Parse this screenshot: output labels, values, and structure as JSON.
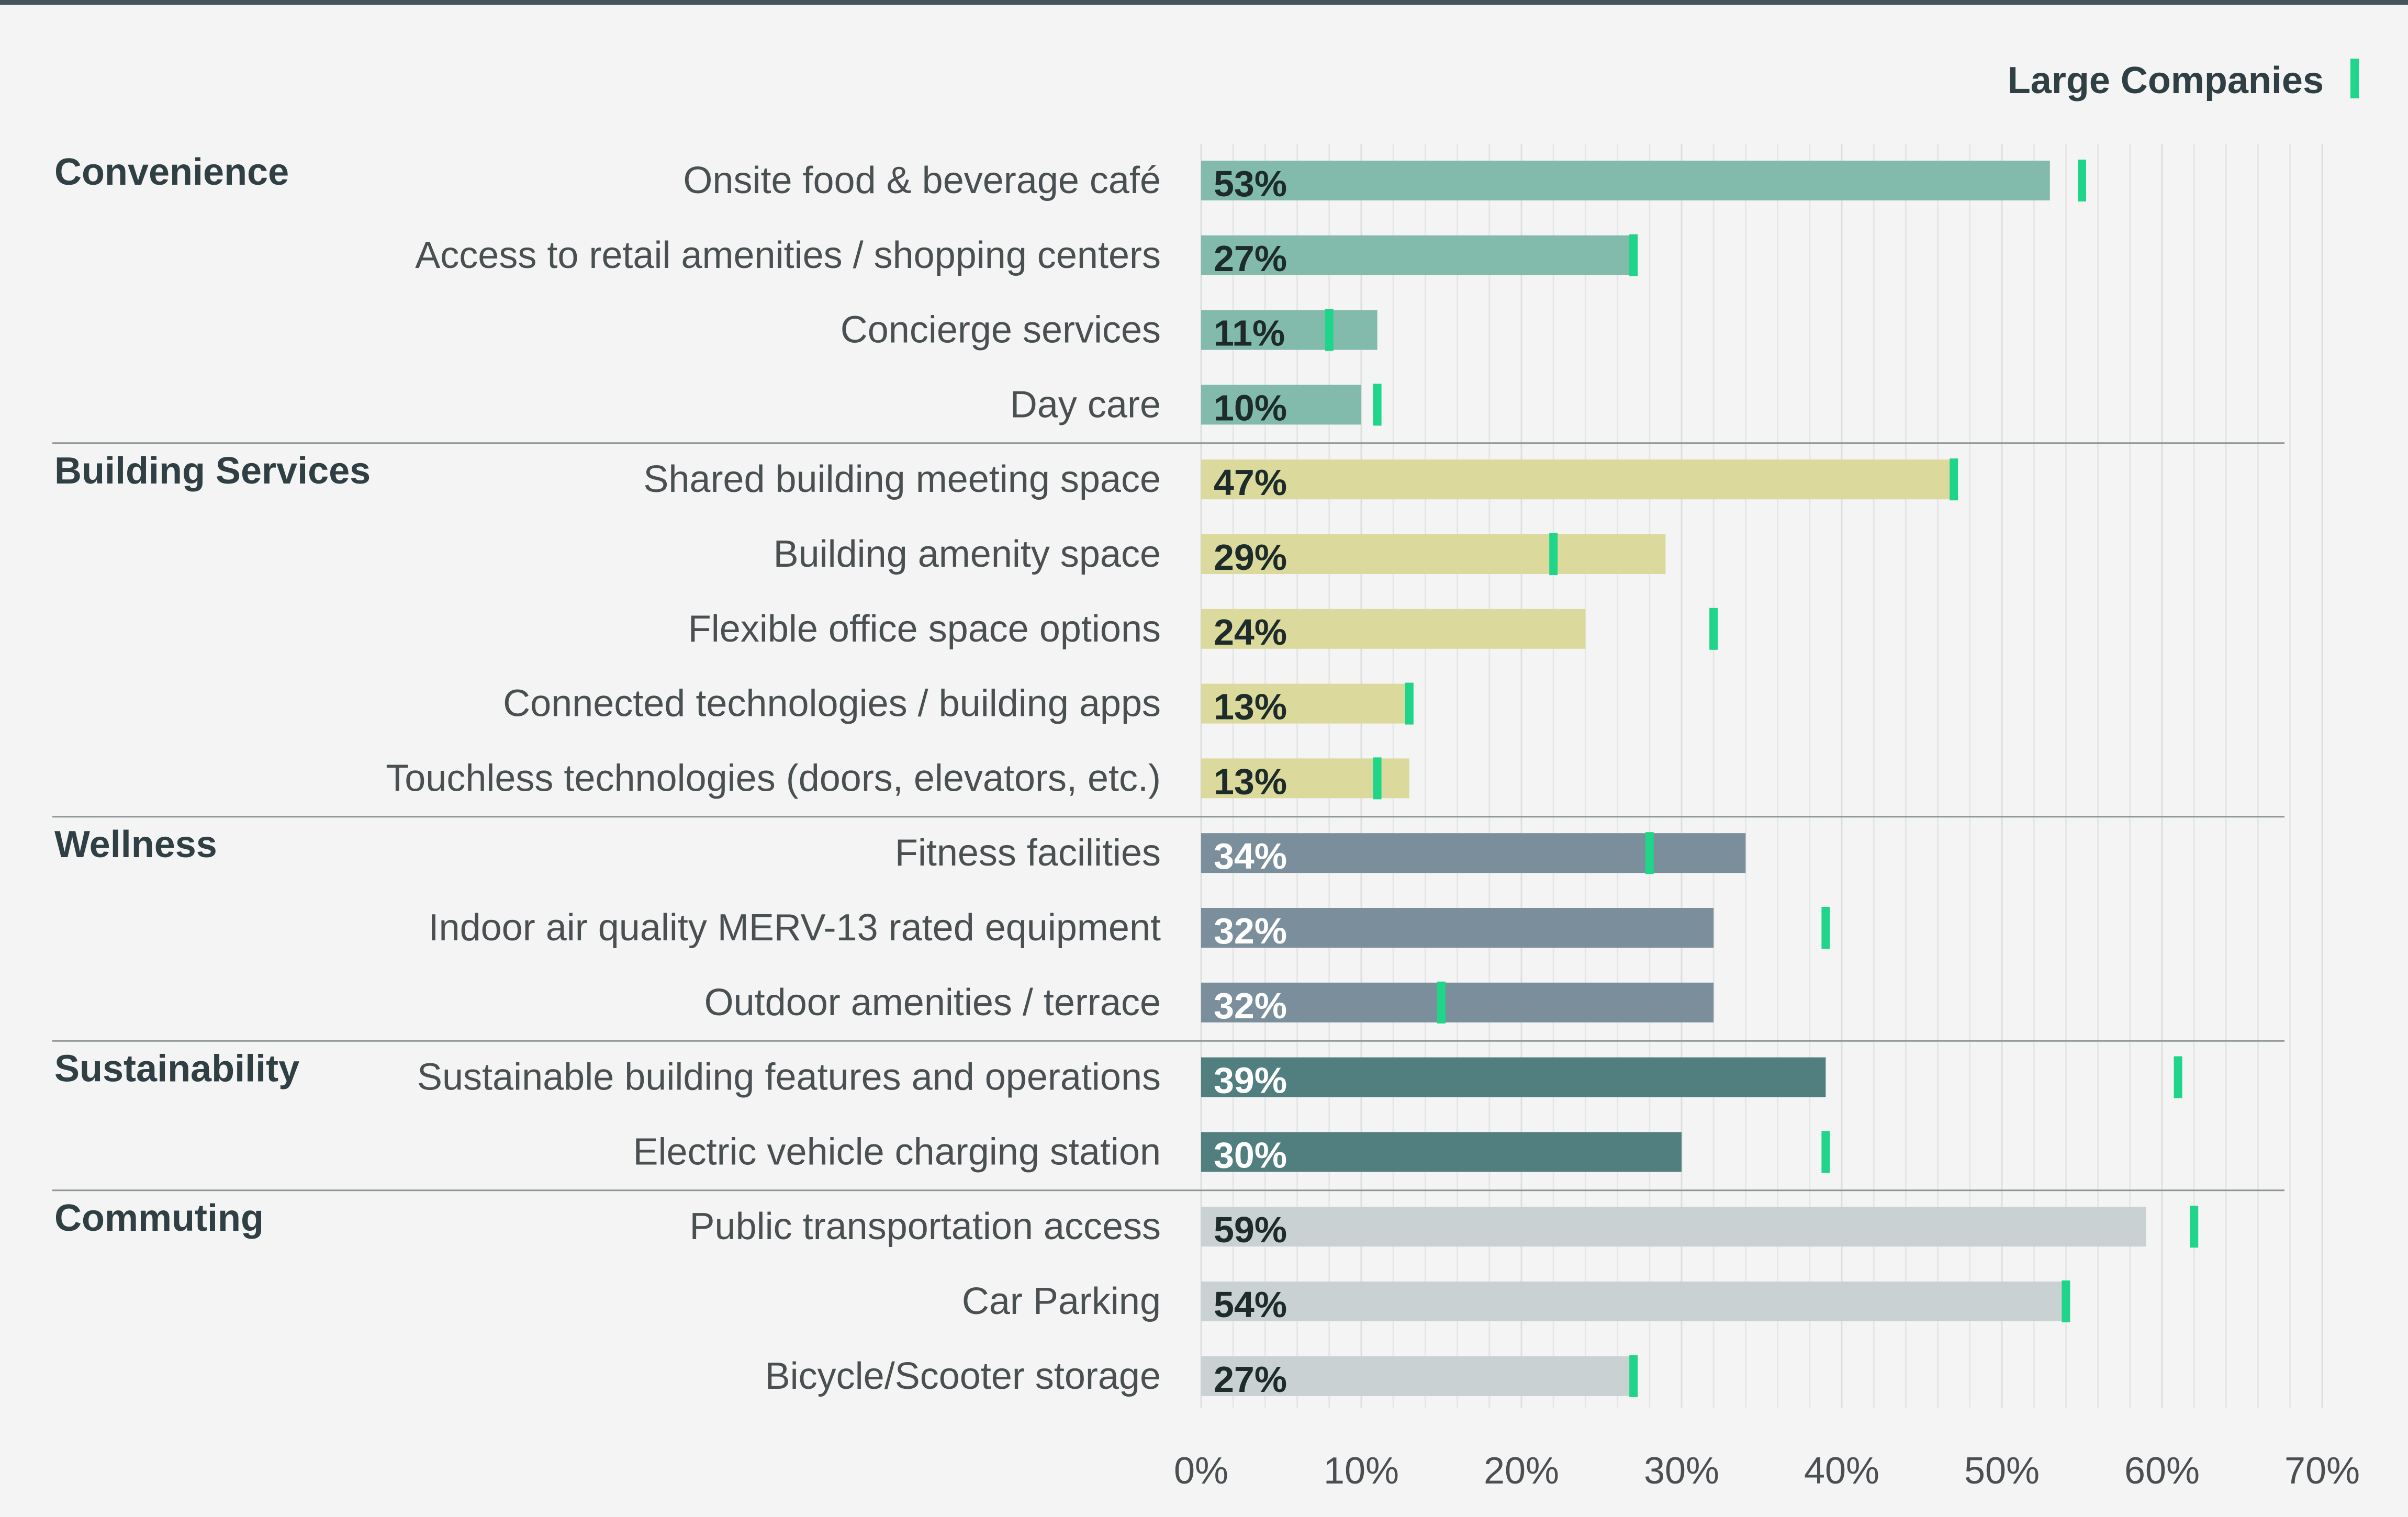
{
  "chart_data": {
    "type": "bar",
    "orientation": "horizontal",
    "legend": {
      "label": "Large Companies",
      "placement": "top-right"
    },
    "x_ticks": [
      "0%",
      "10%",
      "20%",
      "30%",
      "40%",
      "50%",
      "60%",
      "70%"
    ],
    "xlim": [
      0,
      70
    ],
    "grid": true,
    "colors": {
      "Convenience": "#82bbab",
      "Building Services": "#dcd99c",
      "Wellness": "#7a8e9c",
      "Sustainability": "#517f80",
      "Commuting": "#c9d1d2",
      "marker": "#1ed589",
      "label_dark": "#1d2b2b",
      "label_light": "#ffffff",
      "text": "#4a4f52",
      "group_text": "#2f3f44"
    },
    "groups": [
      {
        "name": "Convenience",
        "label_dark": true,
        "items": [
          {
            "label": "Onsite food & beverage café",
            "value": 53,
            "value_label": "53%",
            "large_companies": 55
          },
          {
            "label": "Access to retail amenities / shopping centers",
            "value": 27,
            "value_label": "27%",
            "large_companies": 27
          },
          {
            "label": "Concierge services",
            "value": 11,
            "value_label": "11%",
            "large_companies": 8
          },
          {
            "label": "Day care",
            "value": 10,
            "value_label": "10%",
            "large_companies": 11
          }
        ]
      },
      {
        "name": "Building Services",
        "label_dark": true,
        "items": [
          {
            "label": "Shared building meeting space",
            "value": 47,
            "value_label": "47%",
            "large_companies": 47
          },
          {
            "label": "Building amenity space",
            "value": 29,
            "value_label": "29%",
            "large_companies": 22
          },
          {
            "label": "Flexible office space options",
            "value": 24,
            "value_label": "24%",
            "large_companies": 32
          },
          {
            "label": "Connected technologies / building apps",
            "value": 13,
            "value_label": "13%",
            "large_companies": 13
          },
          {
            "label": "Touchless technologies (doors, elevators, etc.)",
            "value": 13,
            "value_label": "13%",
            "large_companies": 11
          }
        ]
      },
      {
        "name": "Wellness",
        "label_dark": false,
        "items": [
          {
            "label": "Fitness facilities",
            "value": 34,
            "value_label": "34%",
            "large_companies": 28
          },
          {
            "label": "Indoor air quality MERV-13 rated equipment",
            "value": 32,
            "value_label": "32%",
            "large_companies": 39
          },
          {
            "label": "Outdoor amenities / terrace",
            "value": 32,
            "value_label": "32%",
            "large_companies": 15
          }
        ]
      },
      {
        "name": "Sustainability",
        "label_dark": false,
        "items": [
          {
            "label": "Sustainable building features and operations",
            "value": 39,
            "value_label": "39%",
            "large_companies": 61
          },
          {
            "label": "Electric vehicle charging station",
            "value": 30,
            "value_label": "30%",
            "large_companies": 39
          }
        ]
      },
      {
        "name": "Commuting",
        "label_dark": true,
        "items": [
          {
            "label": "Public transportation access",
            "value": 59,
            "value_label": "59%",
            "large_companies": 62
          },
          {
            "label": "Car Parking",
            "value": 54,
            "value_label": "54%",
            "large_companies": 54
          },
          {
            "label": "Bicycle/Scooter storage",
            "value": 27,
            "value_label": "27%",
            "large_companies": 27
          }
        ]
      }
    ]
  }
}
